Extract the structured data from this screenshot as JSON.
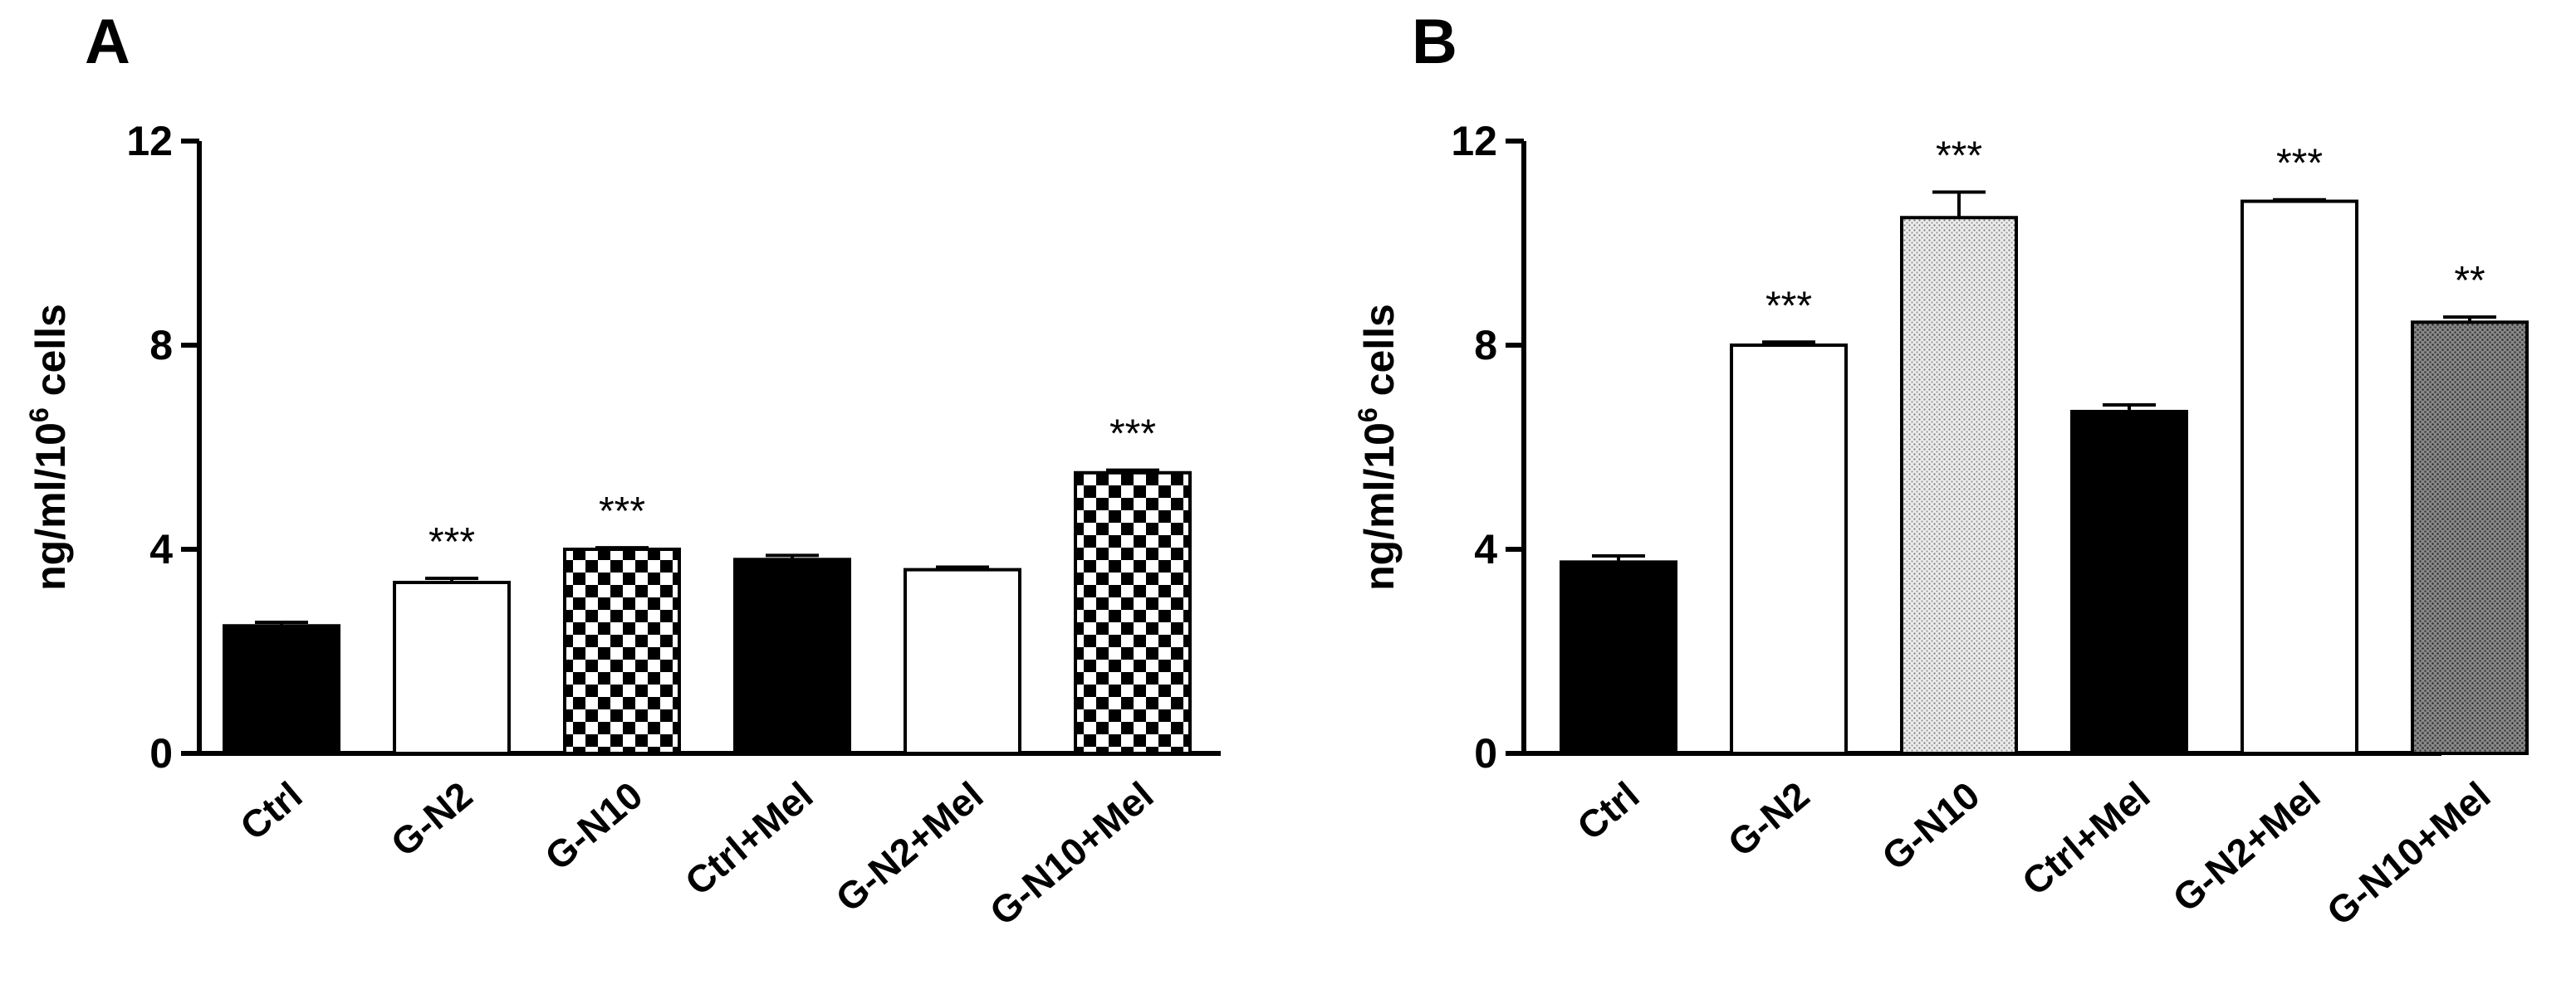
{
  "chart_data": [
    {
      "panel": "A",
      "type": "bar",
      "ylabel": "ng/ml/10",
      "ylabel_superscript": "6",
      "ylabel_suffix": " cells",
      "ylim": [
        0,
        12
      ],
      "yticks": [
        "0",
        "4",
        "8",
        "12"
      ],
      "categories": [
        "Ctrl",
        "G-N2",
        "G-N10",
        "Ctrl+Mel",
        "G-N2+Mel",
        "G-N10+Mel"
      ],
      "values": [
        2.5,
        3.35,
        4.0,
        3.8,
        3.6,
        5.5
      ],
      "errors": [
        0.07,
        0.08,
        0.03,
        0.08,
        0.05,
        0.05
      ],
      "fills": [
        "solid-black",
        "white",
        "checker",
        "solid-black",
        "white",
        "checker"
      ],
      "significance": [
        "",
        "***",
        "***",
        "",
        "",
        "***"
      ]
    },
    {
      "panel": "B",
      "type": "bar",
      "ylabel": "ng/ml/10",
      "ylabel_superscript": "6",
      "ylabel_suffix": " cells",
      "ylim": [
        0,
        12
      ],
      "yticks": [
        "0",
        "4",
        "8",
        "12"
      ],
      "categories": [
        "Ctrl",
        "G-N2",
        "G-N10",
        "Ctrl+Mel",
        "G-N2+Mel",
        "G-N10+Mel"
      ],
      "values": [
        3.75,
        8.0,
        10.5,
        6.7,
        10.82,
        8.45
      ],
      "errors": [
        0.12,
        0.06,
        0.5,
        0.13,
        0.03,
        0.1
      ],
      "fills": [
        "solid-black",
        "white",
        "light-dots",
        "solid-black",
        "white",
        "dark-dots"
      ],
      "significance": [
        "",
        "***",
        "***",
        "",
        "***",
        "**"
      ]
    }
  ]
}
